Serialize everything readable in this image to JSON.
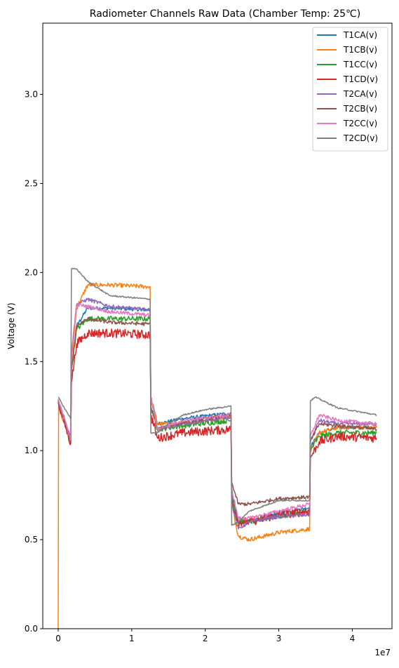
{
  "chart_data": {
    "type": "line",
    "title": "Radiometer Channels Raw Data (Chamber Temp: 25℃)",
    "xlabel": "",
    "ylabel": "Voltage (V)",
    "x_offset_label": "1e7",
    "xlim": [
      -2.1,
      45.4
    ],
    "ylim": [
      0,
      3.4
    ],
    "x_ticks": [
      0,
      10,
      20,
      30,
      40
    ],
    "x_tick_labels": [
      "0",
      "1",
      "2",
      "3",
      "4"
    ],
    "y_ticks": [
      0,
      0.5,
      1,
      1.5,
      2,
      2.5,
      3
    ],
    "y_tick_labels": [
      "0.0",
      "0.5",
      "1.0",
      "1.5",
      "2.0",
      "2.5",
      "3.0"
    ],
    "legend_position": "top-right",
    "x_unit": "1e6",
    "series": [
      {
        "name": "T1CA(v)",
        "color": "#1f77b4",
        "noise": 0.01,
        "points": [
          [
            0,
            1.28
          ],
          [
            1.7,
            1.07
          ],
          [
            1.8,
            1.45
          ],
          [
            2.5,
            1.7
          ],
          [
            4,
            1.8
          ],
          [
            7,
            1.8
          ],
          [
            12.5,
            1.79
          ],
          [
            12.6,
            1.3
          ],
          [
            13.5,
            1.15
          ],
          [
            17,
            1.18
          ],
          [
            23.5,
            1.21
          ],
          [
            23.6,
            0.78
          ],
          [
            24.5,
            0.6
          ],
          [
            26,
            0.6
          ],
          [
            30,
            0.65
          ],
          [
            34.2,
            0.68
          ],
          [
            34.3,
            1.02
          ],
          [
            35.5,
            1.1
          ],
          [
            38,
            1.13
          ],
          [
            43.3,
            1.13
          ]
        ]
      },
      {
        "name": "T1CB(v)",
        "color": "#ff7f0e",
        "noise": 0.012,
        "points": [
          [
            0,
            0
          ],
          [
            0.05,
            1.25
          ],
          [
            1.7,
            1.04
          ],
          [
            1.8,
            1.5
          ],
          [
            2.5,
            1.8
          ],
          [
            4,
            1.93
          ],
          [
            7,
            1.93
          ],
          [
            12.5,
            1.92
          ],
          [
            12.6,
            1.3
          ],
          [
            13.5,
            1.15
          ],
          [
            17,
            1.15
          ],
          [
            23.5,
            1.19
          ],
          [
            23.6,
            0.7
          ],
          [
            24.5,
            0.52
          ],
          [
            26,
            0.5
          ],
          [
            30,
            0.54
          ],
          [
            34.2,
            0.56
          ],
          [
            34.3,
            1.0
          ],
          [
            35.5,
            1.1
          ],
          [
            38,
            1.13
          ],
          [
            43.3,
            1.13
          ]
        ]
      },
      {
        "name": "T1CC(v)",
        "color": "#2ca02c",
        "noise": 0.015,
        "points": [
          [
            0,
            1.27
          ],
          [
            1.7,
            1.05
          ],
          [
            1.8,
            1.45
          ],
          [
            2.5,
            1.68
          ],
          [
            4,
            1.74
          ],
          [
            7,
            1.74
          ],
          [
            12.5,
            1.74
          ],
          [
            12.6,
            1.25
          ],
          [
            13.5,
            1.12
          ],
          [
            17,
            1.14
          ],
          [
            23.5,
            1.17
          ],
          [
            23.6,
            0.75
          ],
          [
            24.5,
            0.6
          ],
          [
            26,
            0.6
          ],
          [
            30,
            0.63
          ],
          [
            34.2,
            0.66
          ],
          [
            34.3,
            1.0
          ],
          [
            35.5,
            1.08
          ],
          [
            38,
            1.1
          ],
          [
            43.3,
            1.1
          ]
        ]
      },
      {
        "name": "T1CD(v)",
        "color": "#d62728",
        "noise": 0.025,
        "points": [
          [
            0,
            1.27
          ],
          [
            1.7,
            1.04
          ],
          [
            1.8,
            1.38
          ],
          [
            2.5,
            1.6
          ],
          [
            4,
            1.66
          ],
          [
            7,
            1.66
          ],
          [
            12.5,
            1.65
          ],
          [
            12.6,
            1.2
          ],
          [
            13.5,
            1.07
          ],
          [
            17,
            1.1
          ],
          [
            23.5,
            1.12
          ],
          [
            23.6,
            0.72
          ],
          [
            24.5,
            0.6
          ],
          [
            26,
            0.6
          ],
          [
            30,
            0.64
          ],
          [
            34.2,
            0.66
          ],
          [
            34.3,
            0.96
          ],
          [
            35.5,
            1.05
          ],
          [
            38,
            1.08
          ],
          [
            43.3,
            1.07
          ]
        ]
      },
      {
        "name": "T2CA(v)",
        "color": "#9467bd",
        "noise": 0.01,
        "points": [
          [
            0,
            1.29
          ],
          [
            1.7,
            1.07
          ],
          [
            1.8,
            1.55
          ],
          [
            2.5,
            1.82
          ],
          [
            4,
            1.85
          ],
          [
            7,
            1.81
          ],
          [
            12.5,
            1.79
          ],
          [
            12.6,
            1.3
          ],
          [
            13.5,
            1.12
          ],
          [
            17,
            1.15
          ],
          [
            23.5,
            1.19
          ],
          [
            23.6,
            0.7
          ],
          [
            24.5,
            0.56
          ],
          [
            26,
            0.6
          ],
          [
            30,
            0.63
          ],
          [
            34.2,
            0.64
          ],
          [
            34.3,
            1.05
          ],
          [
            35.5,
            1.17
          ],
          [
            38,
            1.15
          ],
          [
            43.3,
            1.15
          ]
        ]
      },
      {
        "name": "T2CB(v)",
        "color": "#8c564b",
        "noise": 0.01,
        "points": [
          [
            0,
            1.28
          ],
          [
            1.7,
            1.05
          ],
          [
            1.8,
            1.45
          ],
          [
            2.5,
            1.7
          ],
          [
            4,
            1.74
          ],
          [
            7,
            1.72
          ],
          [
            12.5,
            1.71
          ],
          [
            12.6,
            1.25
          ],
          [
            13.5,
            1.12
          ],
          [
            17,
            1.16
          ],
          [
            23.5,
            1.2
          ],
          [
            23.6,
            0.82
          ],
          [
            24.5,
            0.7
          ],
          [
            26,
            0.7
          ],
          [
            30,
            0.73
          ],
          [
            34.2,
            0.74
          ],
          [
            34.3,
            1.05
          ],
          [
            35.5,
            1.15
          ],
          [
            38,
            1.14
          ],
          [
            43.3,
            1.12
          ]
        ]
      },
      {
        "name": "T2CC(v)",
        "color": "#e377c2",
        "noise": 0.01,
        "points": [
          [
            0,
            1.29
          ],
          [
            1.7,
            1.06
          ],
          [
            1.8,
            1.55
          ],
          [
            2.5,
            1.82
          ],
          [
            4,
            1.81
          ],
          [
            7,
            1.78
          ],
          [
            12.5,
            1.76
          ],
          [
            12.6,
            1.3
          ],
          [
            13.5,
            1.12
          ],
          [
            17,
            1.17
          ],
          [
            23.5,
            1.2
          ],
          [
            23.6,
            0.78
          ],
          [
            24.5,
            0.62
          ],
          [
            26,
            0.62
          ],
          [
            30,
            0.66
          ],
          [
            34.2,
            0.7
          ],
          [
            34.3,
            1.08
          ],
          [
            35.5,
            1.2
          ],
          [
            38,
            1.17
          ],
          [
            43.3,
            1.15
          ]
        ]
      },
      {
        "name": "T2CD(v)",
        "color": "#7f7f7f",
        "noise": 0.004,
        "points": [
          [
            0,
            1.3
          ],
          [
            1.7,
            1.18
          ],
          [
            1.8,
            2.02
          ],
          [
            2.5,
            2.02
          ],
          [
            4,
            1.95
          ],
          [
            7,
            1.87
          ],
          [
            12.5,
            1.85
          ],
          [
            12.6,
            1.1
          ],
          [
            13.5,
            1.1
          ],
          [
            15,
            1.15
          ],
          [
            17,
            1.2
          ],
          [
            20,
            1.23
          ],
          [
            23.5,
            1.25
          ],
          [
            23.6,
            0.58
          ],
          [
            24.5,
            0.6
          ],
          [
            26,
            0.66
          ],
          [
            30,
            0.72
          ],
          [
            34.2,
            0.72
          ],
          [
            34.3,
            1.28
          ],
          [
            35,
            1.3
          ],
          [
            38,
            1.24
          ],
          [
            43.3,
            1.2
          ]
        ]
      }
    ]
  }
}
